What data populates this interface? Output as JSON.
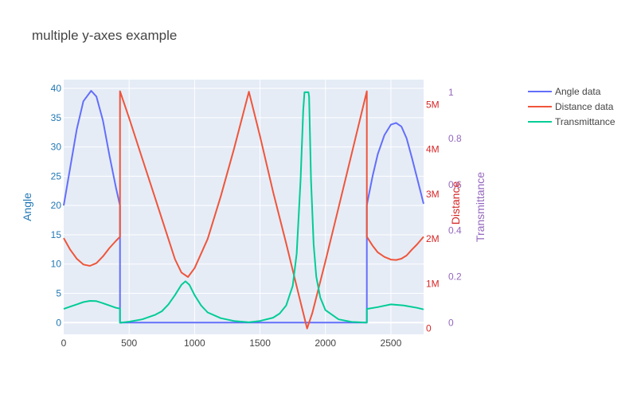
{
  "chart_data": {
    "type": "line",
    "title": "multiple y-axes example",
    "x_range": [
      0,
      2750
    ],
    "x_ticks": [
      0,
      500,
      1000,
      1500,
      2000,
      2500
    ],
    "axes": {
      "y": {
        "title": "Angle",
        "range": [
          -2,
          41.5
        ],
        "ticks": [
          0,
          5,
          10,
          15,
          20,
          25,
          30,
          35,
          40
        ],
        "color": "#1f77b4",
        "side": "left"
      },
      "y2": {
        "title": "Distance",
        "range": [
          -130000,
          5560000
        ],
        "ticks": [
          0,
          1000000,
          2000000,
          3000000,
          4000000,
          5000000
        ],
        "tick_labels": [
          "0",
          "1M",
          "2M",
          "3M",
          "4M",
          "5M"
        ],
        "color": "#d62728",
        "side": "right"
      },
      "y3": {
        "title": "Transmittance",
        "range": [
          -0.05,
          1.055
        ],
        "ticks": [
          0,
          0.2,
          0.4,
          0.6,
          0.8,
          1
        ],
        "tick_labels": [
          "0",
          "0.2",
          "0.4",
          "0.6",
          "0.8",
          "1"
        ],
        "color": "#9467bd",
        "side": "right"
      }
    },
    "grid": true,
    "legend_position": "top-right",
    "series": [
      {
        "name": "Angle data",
        "axis": "y",
        "color": "#636efa",
        "x": [
          0,
          50,
          100,
          150,
          210,
          250,
          300,
          350,
          400,
          430,
          430,
          435,
          500,
          1000,
          1500,
          1860,
          2000,
          2316,
          2316,
          2320,
          2360,
          2400,
          2450,
          2500,
          2540,
          2580,
          2620,
          2660,
          2700,
          2750
        ],
        "y": [
          20,
          26.5,
          33,
          37.8,
          39.6,
          38.6,
          34.5,
          28.5,
          23,
          20,
          0,
          0,
          0,
          0,
          0,
          0,
          0,
          0,
          20,
          20.5,
          25,
          28.8,
          32,
          33.8,
          34.1,
          33.5,
          31.5,
          28.2,
          24.7,
          20.3
        ]
      },
      {
        "name": "Distance data",
        "axis": "y2",
        "color": "#ef553b",
        "x": [
          0,
          50,
          100,
          150,
          200,
          250,
          300,
          350,
          400,
          430,
          430,
          500,
          600,
          700,
          800,
          850,
          900,
          950,
          1000,
          1100,
          1200,
          1300,
          1415,
          1500,
          1600,
          1700,
          1800,
          1860,
          1900,
          2000,
          2100,
          2200,
          2316,
          2316,
          2360,
          2400,
          2450,
          2500,
          2540,
          2580,
          2620,
          2660,
          2700,
          2750
        ],
        "y": [
          2020000,
          1760000,
          1560000,
          1430000,
          1400000,
          1460000,
          1610000,
          1800000,
          1960000,
          2050000,
          5300000,
          4700000,
          3800000,
          2900000,
          2000000,
          1550000,
          1250000,
          1150000,
          1350000,
          2000000,
          2950000,
          4000000,
          5290000,
          4300000,
          3050000,
          1900000,
          700000,
          0,
          350000,
          1500000,
          2700000,
          3900000,
          5300000,
          2050000,
          1850000,
          1700000,
          1600000,
          1540000,
          1530000,
          1560000,
          1630000,
          1760000,
          1880000,
          2050000
        ]
      },
      {
        "name": "Transmittance",
        "axis": "y3",
        "color": "#00cc96",
        "x": [
          0,
          50,
          100,
          150,
          200,
          250,
          300,
          350,
          400,
          430,
          430,
          500,
          600,
          700,
          750,
          800,
          850,
          900,
          930,
          960,
          1000,
          1050,
          1100,
          1200,
          1300,
          1415,
          1500,
          1600,
          1650,
          1700,
          1750,
          1780,
          1810,
          1830,
          1840,
          1850,
          1860,
          1870,
          1875,
          1890,
          1910,
          1930,
          1960,
          2000,
          2100,
          2200,
          2316,
          2316,
          2400,
          2500,
          2600,
          2700,
          2750
        ],
        "y": [
          0.06,
          0.07,
          0.08,
          0.09,
          0.095,
          0.094,
          0.085,
          0.075,
          0.065,
          0.062,
          0,
          0.005,
          0.015,
          0.035,
          0.05,
          0.08,
          0.12,
          0.165,
          0.18,
          0.165,
          0.12,
          0.075,
          0.045,
          0.02,
          0.008,
          0.002,
          0.008,
          0.022,
          0.04,
          0.075,
          0.16,
          0.3,
          0.62,
          0.92,
          1.0,
          1.0,
          1.0,
          1.0,
          0.98,
          0.62,
          0.34,
          0.2,
          0.11,
          0.055,
          0.015,
          0.004,
          0.001,
          0.06,
          0.068,
          0.08,
          0.075,
          0.065,
          0.058
        ]
      }
    ]
  }
}
